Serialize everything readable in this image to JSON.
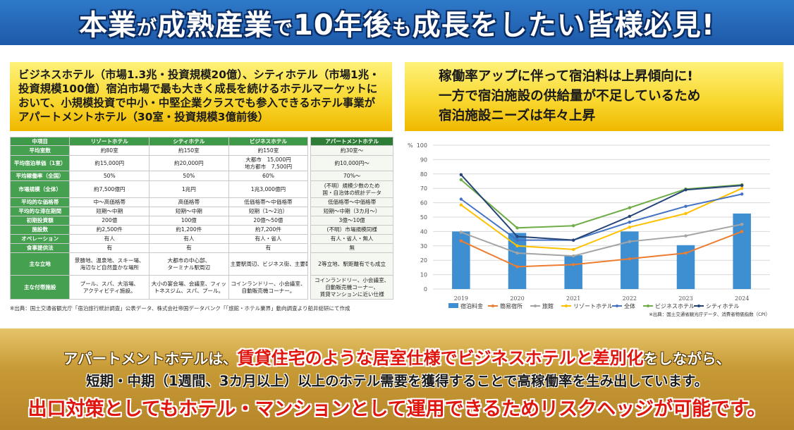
{
  "banner": {
    "part1": "本業",
    "part2": "が",
    "part3": "成熟産業",
    "part4": "で",
    "part5": "10年後",
    "part6": "も",
    "part7": "成長",
    "part8": "をしたい皆様必見!"
  },
  "left": {
    "intro": [
      "ビジネスホテル（市場1.3兆・投資規模20億）、シティホテル（市場1兆・",
      "投資規模100億）宿泊市場で最も大きく成長を続けるホテルマーケットに",
      "おいて、小規模投資で中小・中堅企業クラスでも参入できるホテル事業が",
      "アパートメントホテル（30室・投資規模3億前後）"
    ],
    "table": {
      "headers": [
        "中項目",
        "リゾートホテル",
        "シティホテル",
        "ビジネスホテル",
        "アパートメントホテル"
      ],
      "rows": [
        [
          "平均室数",
          "約80室",
          "約150室",
          "約150室",
          "約30室〜"
        ],
        [
          "平均宿泊単価（1室）",
          "約15,000円",
          "約20,000円",
          "大都市　15,000円\n地方都市　7,500円",
          "約10,000円〜"
        ],
        [
          "平均稼働率（全国）",
          "50%",
          "50%",
          "60%",
          "70%〜"
        ],
        [
          "市場規模（全体）",
          "約7,500億円",
          "1兆円",
          "1兆3,000億円",
          "(不明）規模少数のため\n国・自治体の統計データ"
        ],
        [
          "平均的な価格帯",
          "中〜高価格帯",
          "高価格帯",
          "低価格帯〜中価格帯",
          "低価格帯〜中価格帯"
        ],
        [
          "平均的な滞在期間",
          "短期〜中期",
          "短期〜中期",
          "短期（1〜2泊）",
          "短期〜中期（3カ月〜）"
        ],
        [
          "初期投資額",
          "200億",
          "100億",
          "20億〜50億",
          "3億〜10億"
        ],
        [
          "施設数",
          "約2,500件",
          "約1,200件",
          "約7,200件",
          "(不明）市場規模同様"
        ],
        [
          "オペレーション",
          "有人",
          "有人",
          "有人・省人",
          "有人・省人・無人"
        ],
        [
          "食事提供法",
          "有",
          "有",
          "有",
          "無"
        ],
        [
          "主な立地",
          "景勝地、温泉地、スキー場、\n海辺など自然豊かな場所",
          "大都市の中心部、\nターミナル駅周辺",
          "主要駅周辺、ビジネス街、主要幹",
          "2等立地、駅距離有でも成立"
        ],
        [
          "主な付帯施設",
          "プール、スパ、大浴場、\nアクティビティ施設。",
          "大小の宴会場、会議室、フィッ\nトネスジム、スパ、プール。",
          "コインランドリー、小会議室、\n自動販売機コーナー。",
          "コインランドリー、小会議室、\n自動販売機コーナー、\n賃貸マンションに近い仕様"
        ]
      ]
    },
    "source": "※出典：国土交通省観光庁「宿泊旅行統計調査」公表データ、株式会社帝国データバンク「「旅館・ホテル業界」動向調査より船井総研にて作成"
  },
  "right": {
    "heading": [
      "稼働率アップに伴って宿泊料は上昇傾向に!",
      "一方で宿泊施設の供給量が不足しているため",
      "宿泊施設ニーズは年々上昇"
    ],
    "source": "※出典：国土交通省観光庁データ、消費者物価指数（CPI）"
  },
  "chart_data": {
    "type": "bar",
    "title": "",
    "ylabel": "%",
    "ylim": [
      0,
      100
    ],
    "yticks": [
      0,
      10,
      20,
      30,
      40,
      50,
      60,
      70,
      80,
      90,
      100
    ],
    "categories": [
      "2019",
      "2020",
      "2021",
      "2022",
      "2023",
      "2024"
    ],
    "grid": true,
    "legend_position": "bottom",
    "series": [
      {
        "name": "宿泊料金",
        "kind": "bar",
        "color": "#3d8fd1",
        "values": [
          40,
          39,
          23.5,
          40,
          30.5,
          52.5
        ]
      },
      {
        "name": "簡易宿所",
        "kind": "line",
        "color": "#ed7d31",
        "values": [
          33.5,
          15.5,
          17,
          21,
          25,
          40
        ]
      },
      {
        "name": "旅館",
        "kind": "line",
        "color": "#a5a5a5",
        "values": [
          39.5,
          25,
          23,
          33,
          37,
          45
        ]
      },
      {
        "name": "リゾートホテル",
        "kind": "line",
        "color": "#ffc000",
        "values": [
          58.5,
          30,
          27.5,
          43,
          52.5,
          70
        ]
      },
      {
        "name": "全体",
        "kind": "line",
        "color": "#4472c4",
        "values": [
          62.5,
          34,
          34,
          46.5,
          57.5,
          66
        ]
      },
      {
        "name": "ビジネスホテル",
        "kind": "line",
        "color": "#70ad47",
        "values": [
          76,
          42.5,
          44,
          56.5,
          69.5,
          72.5
        ]
      },
      {
        "name": "シティホテル",
        "kind": "line",
        "color": "#264478",
        "values": [
          79.5,
          36.5,
          34,
          50.5,
          69,
          72
        ]
      }
    ]
  },
  "bottom": {
    "l1a": "アパートメントホテルは、",
    "l1b": "賃貸住宅のような居室仕様でビジネスホテルと差別化",
    "l1c": "をしながら、",
    "l2": "短期・中期（1週間、3カ月以上）以上のホテル需要を獲得することで高稼働率を生み出しています。",
    "l3": "出口対策としてもホテル・マンションとして運用できるためリスクヘッジが可能です。"
  }
}
